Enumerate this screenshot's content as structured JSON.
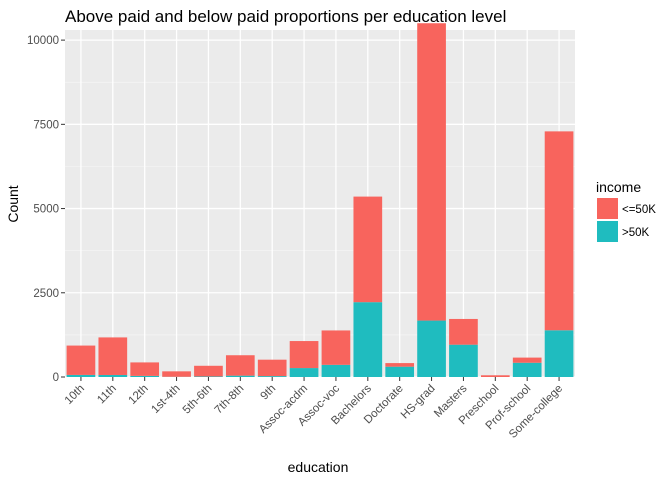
{
  "chart_data": {
    "type": "bar",
    "stacked": true,
    "title": "Above paid and below paid proportions per education level",
    "xlabel": "education",
    "ylabel": "Count",
    "ylim": [
      0,
      10300
    ],
    "yticks": [
      0,
      2500,
      5000,
      7500,
      10000
    ],
    "ytick_labels": [
      "0",
      "2500",
      "5000",
      "7500",
      "10000"
    ],
    "categories": [
      "10th",
      "11th",
      "12th",
      "1st-4th",
      "5th-6th",
      "7th-8th",
      "9th",
      "Assoc-acdm",
      "Assoc-voc",
      "Bachelors",
      "Doctorate",
      "HS-grad",
      "Masters",
      "Preschool",
      "Prof-school",
      "Some-college"
    ],
    "series": [
      {
        "name": ">50K",
        "color": "#1fbcbf",
        "values": [
          62,
          60,
          33,
          6,
          16,
          40,
          27,
          265,
          361,
          2221,
          306,
          1675,
          959,
          0,
          423,
          1387
        ]
      },
      {
        "name": "<=50K",
        "color": "#f8645d",
        "values": [
          871,
          1115,
          400,
          162,
          317,
          606,
          487,
          802,
          1021,
          3134,
          107,
          8826,
          764,
          51,
          153,
          5904
        ]
      }
    ],
    "legend": {
      "title": "income",
      "position": "right",
      "entries": [
        {
          "label": "<=50K",
          "color": "#f8645d"
        },
        {
          "label": ">50K",
          "color": "#1fbcbf"
        }
      ]
    },
    "grid": true
  }
}
